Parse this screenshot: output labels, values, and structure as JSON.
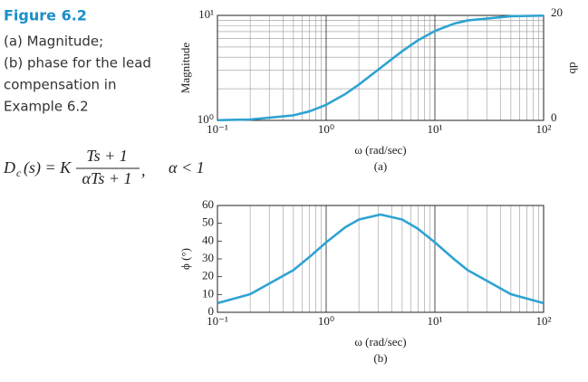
{
  "caption": {
    "figure": "Figure 6.2",
    "lines": [
      "(a) Magnitude;",
      "(b) phase for the lead",
      "compensation in",
      "Example 6.2"
    ]
  },
  "formula": {
    "lhs": "D",
    "sub": "c",
    "mid": "(s) = K",
    "num": "Ts + 1",
    "den": "αTs + 1",
    "sep": ",",
    "cond": "α < 1"
  },
  "chart_data": [
    {
      "type": "line",
      "subtitle": "(a)",
      "y_label": "Magnitude",
      "x_label": "ω (rad/sec)",
      "y2_label": "db",
      "x_log": true,
      "y_log": true,
      "grid": true,
      "ygrid": true,
      "xlim": [
        0.1,
        100
      ],
      "xticks": [
        {
          "value": 0.1,
          "label": "10⁻¹"
        },
        {
          "value": 1,
          "label": "10⁰"
        },
        {
          "value": 10,
          "label": "10¹"
        },
        {
          "value": 100,
          "label": "10²"
        }
      ],
      "ylim": [
        1,
        10
      ],
      "yticks": [
        {
          "value": 1,
          "label": "10⁰"
        },
        {
          "value": 10,
          "label": "10¹"
        }
      ],
      "y2lim": [
        0,
        20
      ],
      "y2ticks": [
        0,
        20
      ],
      "x": [
        0.1,
        0.2,
        0.5,
        0.7,
        1,
        1.5,
        2,
        3.16,
        5,
        7,
        10,
        15,
        20,
        50,
        100
      ],
      "series": [
        {
          "name": "Magnitude",
          "color": "#2fa3d2",
          "values": [
            1.005,
            1.02,
            1.117,
            1.218,
            1.407,
            1.783,
            2.193,
            3.162,
            4.561,
            5.793,
            7.107,
            8.338,
            8.955,
            9.808,
            9.95
          ]
        }
      ]
    },
    {
      "type": "line",
      "subtitle": "(b)",
      "y_label": "ϕ (°)",
      "x_label": "ω (rad/sec)",
      "x_log": true,
      "y_log": false,
      "grid": true,
      "ygrid": false,
      "xlim": [
        0.1,
        100
      ],
      "xticks": [
        {
          "value": 0.1,
          "label": "10⁻¹"
        },
        {
          "value": 1,
          "label": "10⁰"
        },
        {
          "value": 10,
          "label": "10¹"
        },
        {
          "value": 100,
          "label": "10²"
        }
      ],
      "ylim": [
        0,
        60
      ],
      "yticks": [
        0,
        10,
        20,
        30,
        40,
        50,
        60
      ],
      "x": [
        0.1,
        0.2,
        0.5,
        0.7,
        1,
        1.5,
        2,
        3.16,
        5,
        7,
        10,
        15,
        20,
        50,
        100
      ],
      "series": [
        {
          "name": "Phase",
          "color": "#2fa3d2",
          "values": [
            5.14,
            10.16,
            23.71,
            30.99,
            39.29,
            47.78,
            52.12,
            54.9,
            52.12,
            46.88,
            39.29,
            29.88,
            23.71,
            10.16,
            5.14
          ]
        }
      ]
    }
  ]
}
